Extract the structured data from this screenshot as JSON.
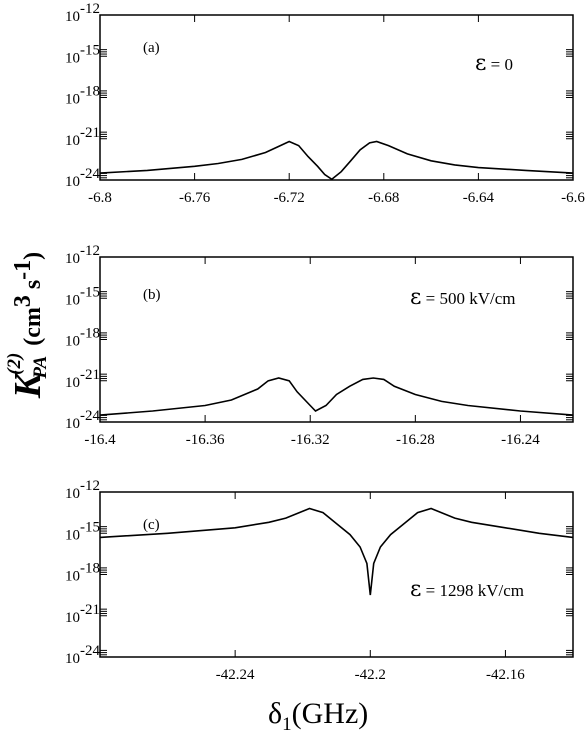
{
  "chart_data": [
    {
      "type": "line",
      "panel_label": "(a)",
      "annotation": {
        "symbol": "ε",
        "text": " = 0"
      },
      "xlim": [
        -6.8,
        -6.6
      ],
      "ylim": [
        -24,
        -12
      ],
      "yscale": "log",
      "x_ticks": [
        -6.8,
        -6.76,
        -6.72,
        -6.68,
        -6.64,
        -6.6
      ],
      "x_tick_labels": [
        "-6.8",
        "-6.76",
        "-6.72",
        "-6.68",
        "-6.64",
        "-6.6"
      ],
      "y_ticks": [
        -24,
        -21,
        -18,
        -15,
        -12
      ],
      "y_tick_labels": [
        {
          "base": "10",
          "exp": "-24"
        },
        {
          "base": "10",
          "exp": "-21"
        },
        {
          "base": "10",
          "exp": "-18"
        },
        {
          "base": "10",
          "exp": "-15"
        },
        {
          "base": "10",
          "exp": "-12"
        }
      ],
      "series": [
        {
          "x": [
            -6.8,
            -6.78,
            -6.76,
            -6.75,
            -6.74,
            -6.73,
            -6.725,
            -6.72,
            -6.716,
            -6.712,
            -6.708,
            -6.705,
            -6.702,
            -6.698,
            -6.694,
            -6.69,
            -6.686,
            -6.683,
            -6.678,
            -6.67,
            -6.66,
            -6.65,
            -6.64,
            -6.62,
            -6.6
          ],
          "y": [
            -23.5,
            -23.3,
            -23.0,
            -22.8,
            -22.5,
            -22.0,
            -21.6,
            -21.2,
            -21.5,
            -22.3,
            -23.0,
            -23.6,
            -23.95,
            -23.4,
            -22.6,
            -21.8,
            -21.3,
            -21.2,
            -21.5,
            -22.1,
            -22.6,
            -22.9,
            -23.1,
            -23.3,
            -23.5
          ]
        }
      ]
    },
    {
      "type": "line",
      "panel_label": "(b)",
      "annotation": {
        "symbol": "ε",
        "text": " = 500 kV/cm"
      },
      "xlim": [
        -16.4,
        -16.22
      ],
      "ylim": [
        -24,
        -12
      ],
      "yscale": "log",
      "x_ticks": [
        -16.4,
        -16.36,
        -16.32,
        -16.28,
        -16.24
      ],
      "x_tick_labels": [
        "-16.4",
        "-16.36",
        "-16.32",
        "-16.28",
        "-16.24"
      ],
      "y_ticks": [
        -24,
        -21,
        -18,
        -15,
        -12
      ],
      "y_tick_labels": [
        {
          "base": "10",
          "exp": "-24"
        },
        {
          "base": "10",
          "exp": "-21"
        },
        {
          "base": "10",
          "exp": "-18"
        },
        {
          "base": "10",
          "exp": "-15"
        },
        {
          "base": "10",
          "exp": "-12"
        }
      ],
      "series": [
        {
          "x": [
            -16.4,
            -16.38,
            -16.36,
            -16.35,
            -16.34,
            -16.336,
            -16.332,
            -16.328,
            -16.325,
            -16.32,
            -16.318,
            -16.314,
            -16.31,
            -16.305,
            -16.3,
            -16.296,
            -16.292,
            -16.288,
            -16.28,
            -16.27,
            -16.26,
            -16.24,
            -16.22
          ],
          "y": [
            -23.5,
            -23.2,
            -22.8,
            -22.4,
            -21.6,
            -21.0,
            -20.8,
            -21.0,
            -21.8,
            -22.8,
            -23.2,
            -22.8,
            -22.0,
            -21.4,
            -20.9,
            -20.8,
            -20.9,
            -21.4,
            -22.0,
            -22.5,
            -22.8,
            -23.2,
            -23.5
          ]
        }
      ]
    },
    {
      "type": "line",
      "panel_label": "(c)",
      "annotation": {
        "symbol": "ε",
        "text": " = 1298 kV/cm"
      },
      "xlim": [
        -42.28,
        -42.14
      ],
      "ylim": [
        -24,
        -12
      ],
      "yscale": "log",
      "x_ticks": [
        -42.24,
        -42.2,
        -42.16
      ],
      "x_tick_labels": [
        "-42.24",
        "-42.2",
        "-42.16"
      ],
      "y_ticks": [
        -24,
        -21,
        -18,
        -15,
        -12
      ],
      "y_tick_labels": [
        {
          "base": "10",
          "exp": "-24"
        },
        {
          "base": "10",
          "exp": "-21"
        },
        {
          "base": "10",
          "exp": "-18"
        },
        {
          "base": "10",
          "exp": "-15"
        },
        {
          "base": "10",
          "exp": "-12"
        }
      ],
      "series": [
        {
          "x": [
            -42.28,
            -42.26,
            -42.24,
            -42.23,
            -42.225,
            -42.22,
            -42.218,
            -42.214,
            -42.21,
            -42.206,
            -42.203,
            -42.201,
            -42.2,
            -42.199,
            -42.197,
            -42.194,
            -42.19,
            -42.186,
            -42.182,
            -42.18,
            -42.175,
            -42.17,
            -42.16,
            -42.15,
            -42.14
          ],
          "y": [
            -15.3,
            -15.0,
            -14.6,
            -14.2,
            -13.9,
            -13.4,
            -13.2,
            -13.5,
            -14.3,
            -15.1,
            -16.0,
            -17.2,
            -19.5,
            -17.2,
            -16.0,
            -15.1,
            -14.3,
            -13.5,
            -13.2,
            -13.4,
            -13.9,
            -14.2,
            -14.6,
            -15.0,
            -15.3
          ]
        }
      ]
    }
  ],
  "axes_labels": {
    "x": {
      "main": "δ",
      "sub": "1",
      "rest": "(GHz)"
    },
    "y": {
      "main": "K",
      "sup": "(2)",
      "sub": "PA",
      "unit_open": "(cm",
      "unit_sup1": "3",
      "unit_mid": " s",
      "unit_sup2": "-1",
      "unit_close": ")"
    }
  }
}
